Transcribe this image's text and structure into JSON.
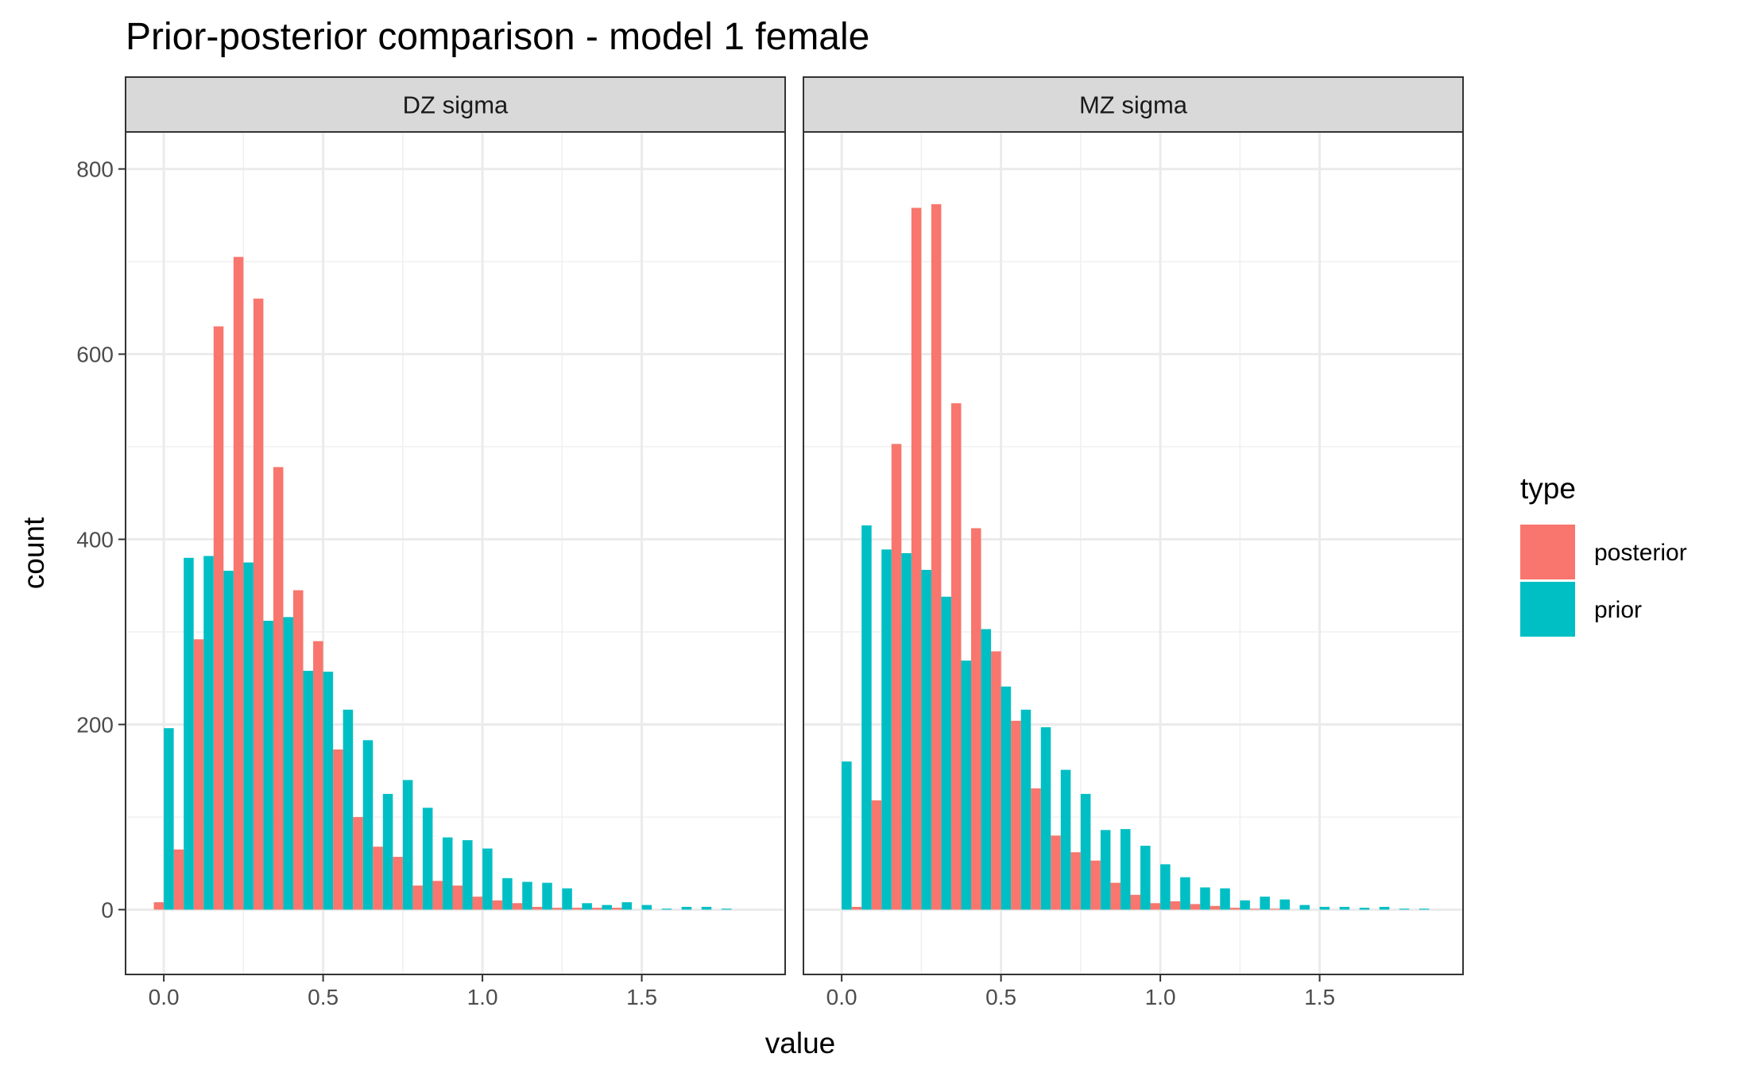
{
  "chart_data": {
    "type": "bar",
    "title": "Prior-posterior comparison - model 1 female",
    "xlabel": "value",
    "ylabel": "count",
    "xlim": [
      -0.12,
      1.95
    ],
    "ylim": [
      -70,
      840
    ],
    "x_ticks": [
      0.0,
      0.5,
      1.0,
      1.5
    ],
    "x_tick_labels": [
      "0.0",
      "0.5",
      "1.0",
      "1.5"
    ],
    "y_ticks": [
      0,
      200,
      400,
      600,
      800
    ],
    "y_tick_labels": [
      "0",
      "200",
      "400",
      "600",
      "800"
    ],
    "bin_width": 0.0625,
    "grid": true,
    "legend": {
      "title": "type",
      "position": "right",
      "entries": [
        {
          "label": "posterior",
          "color": "#F8766D"
        },
        {
          "label": "prior",
          "color": "#00BFC4"
        }
      ]
    },
    "panels": [
      {
        "strip": "DZ sigma",
        "bin_centers": [
          0.0,
          0.0625,
          0.125,
          0.1875,
          0.25,
          0.3125,
          0.375,
          0.4375,
          0.5,
          0.5625,
          0.625,
          0.6875,
          0.75,
          0.8125,
          0.875,
          0.9375,
          1.0,
          1.0625,
          1.125,
          1.1875,
          1.25,
          1.3125,
          1.375,
          1.4375,
          1.5,
          1.5625,
          1.625,
          1.6875,
          1.75
        ],
        "series": [
          {
            "name": "posterior",
            "values": [
              8,
              65,
              292,
              630,
              705,
              660,
              478,
              345,
              290,
              173,
              100,
              68,
              57,
              26,
              31,
              26,
              14,
              10,
              7,
              3,
              2,
              2,
              2,
              2,
              0,
              0,
              0,
              0,
              0
            ]
          },
          {
            "name": "prior",
            "values": [
              196,
              380,
              382,
              366,
              375,
              312,
              316,
              258,
              257,
              216,
              183,
              125,
              140,
              110,
              78,
              75,
              66,
              34,
              30,
              29,
              23,
              7,
              5,
              8,
              5,
              1,
              3,
              3,
              1
            ]
          }
        ]
      },
      {
        "strip": "MZ sigma",
        "bin_centers": [
          0.0,
          0.0625,
          0.125,
          0.1875,
          0.25,
          0.3125,
          0.375,
          0.4375,
          0.5,
          0.5625,
          0.625,
          0.6875,
          0.75,
          0.8125,
          0.875,
          0.9375,
          1.0,
          1.0625,
          1.125,
          1.1875,
          1.25,
          1.3125,
          1.375,
          1.4375,
          1.5,
          1.5625,
          1.625,
          1.6875,
          1.75,
          1.8125
        ],
        "series": [
          {
            "name": "posterior",
            "values": [
              0,
              3,
              118,
              503,
              758,
              762,
              547,
              412,
              279,
              204,
              131,
              80,
              62,
              53,
              29,
              16,
              7,
              9,
              6,
              4,
              2,
              1,
              1,
              0,
              0,
              0,
              0,
              0,
              0,
              0
            ]
          },
          {
            "name": "prior",
            "values": [
              160,
              415,
              389,
              385,
              367,
              338,
              269,
              303,
              241,
              216,
              197,
              151,
              125,
              86,
              87,
              69,
              49,
              35,
              24,
              23,
              10,
              14,
              11,
              5,
              3,
              3,
              2,
              3,
              1,
              1
            ]
          }
        ]
      }
    ]
  }
}
